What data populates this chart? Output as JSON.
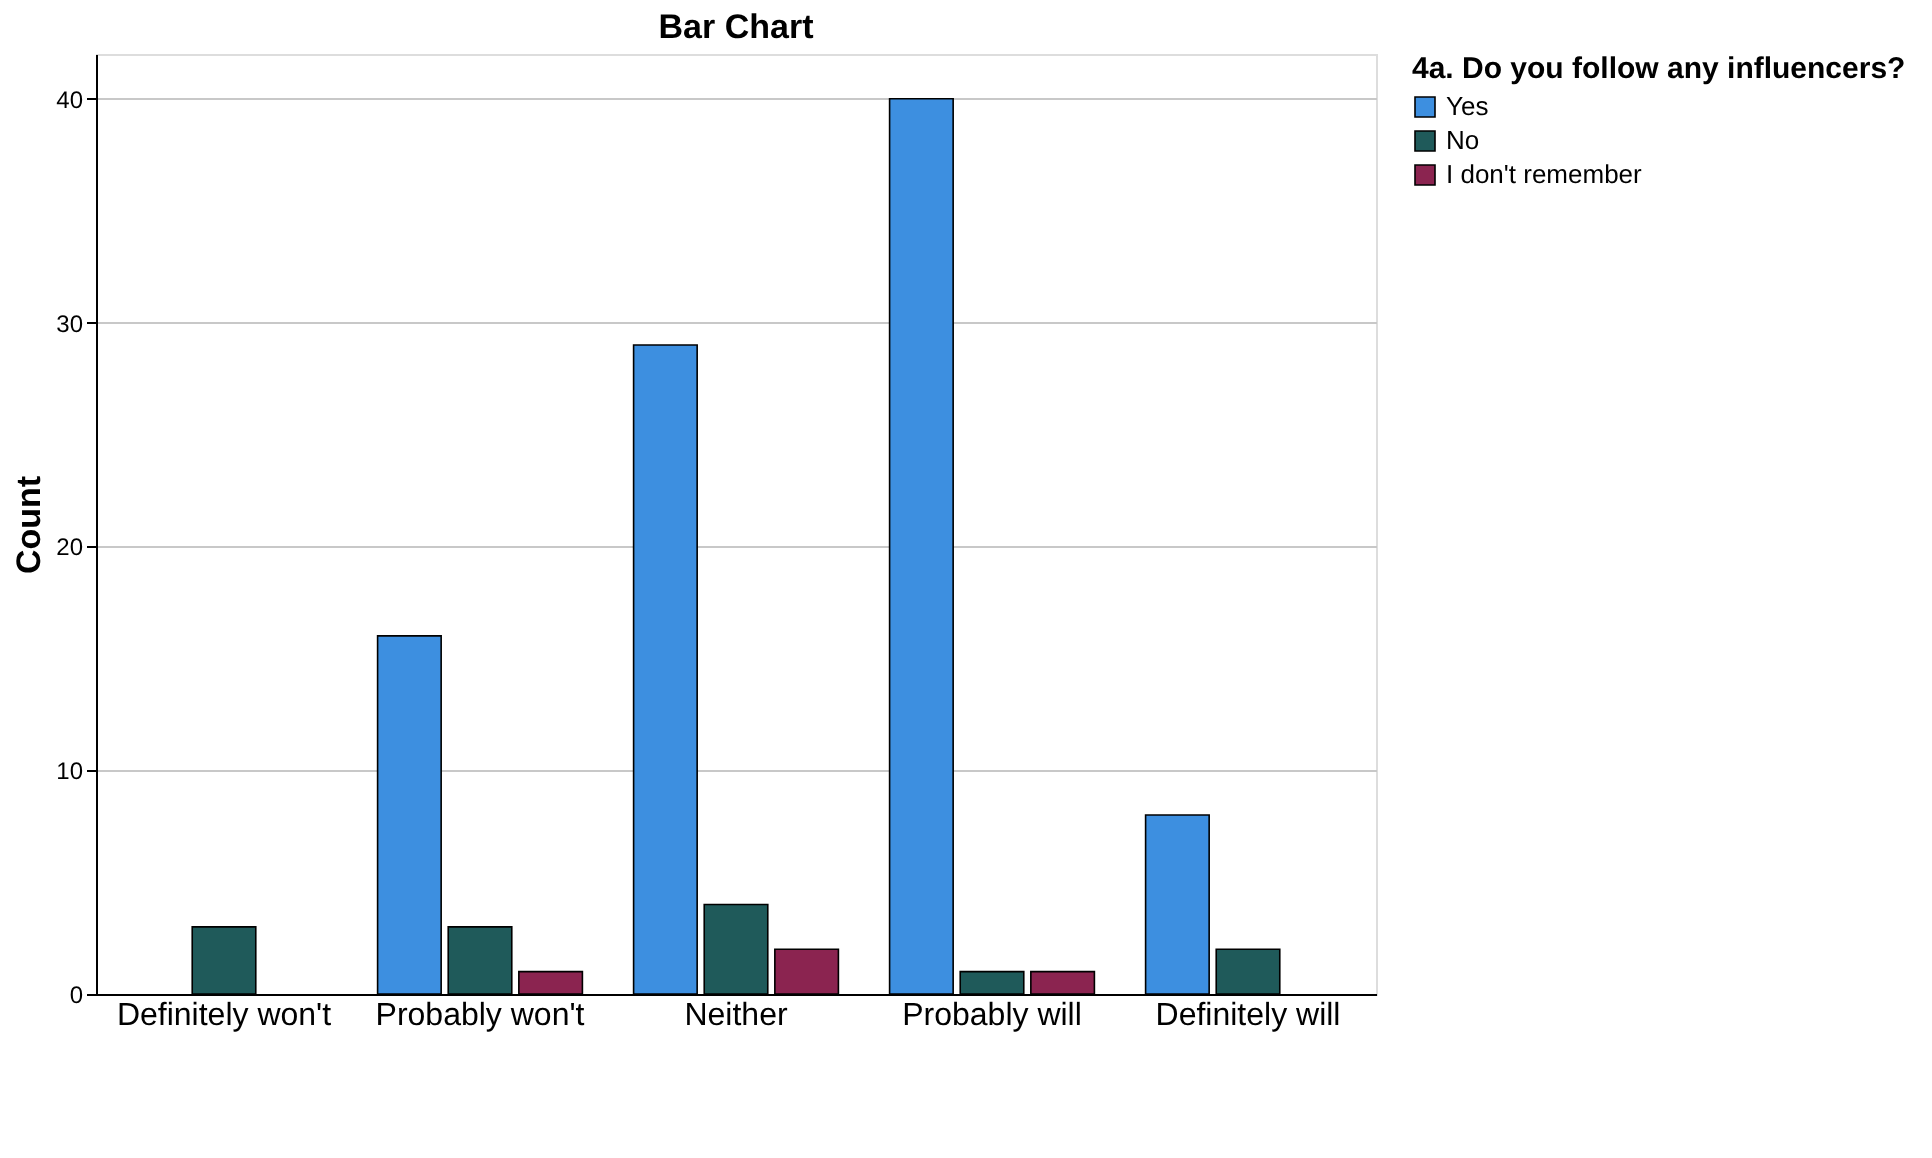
{
  "chart_data": {
    "type": "bar",
    "title": "Bar Chart",
    "ylabel": "Count",
    "legend_title": "4a. Do you follow any influencers?",
    "categories": [
      "Definitely won't",
      "Probably won't",
      "Neither",
      "Probably will",
      "Definitely will"
    ],
    "series": [
      {
        "name": "Yes",
        "color": "#3d8fe0",
        "values": [
          null,
          16,
          29,
          40,
          8
        ]
      },
      {
        "name": "No",
        "color": "#1f5a5a",
        "values": [
          3,
          3,
          4,
          1,
          2
        ]
      },
      {
        "name": "I don't remember",
        "color": "#8b2450",
        "values": [
          null,
          1,
          2,
          1,
          null
        ]
      }
    ],
    "ylim": [
      0,
      42
    ],
    "yticks": [
      0,
      10,
      20,
      30,
      40
    ],
    "grid": "y",
    "legend": "top right"
  }
}
